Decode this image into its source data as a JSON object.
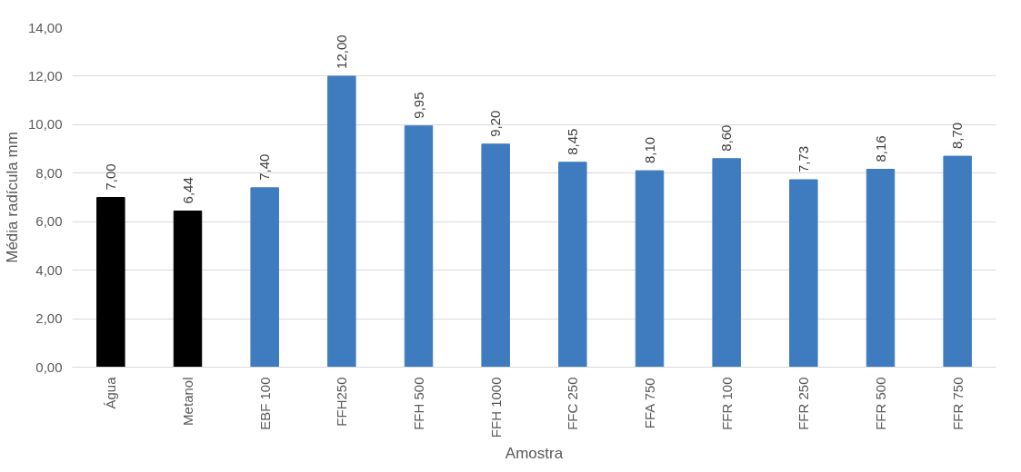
{
  "chart_data": {
    "type": "bar",
    "xlabel": "Amostra",
    "ylabel": "Média radícula mm",
    "categories": [
      "Água",
      "Metanol",
      "EBF 100",
      "FFH250",
      "FFH 500",
      "FFH 1000",
      "FFC 250",
      "FFA 750",
      "FFR 100",
      "FFR 250",
      "FFR 500",
      "FFR 750"
    ],
    "values": [
      7.0,
      6.44,
      7.4,
      12.0,
      9.95,
      9.2,
      8.45,
      8.1,
      8.6,
      7.73,
      8.16,
      8.7
    ],
    "colors": [
      "#000000",
      "#000000",
      "#3f7cbf",
      "#3f7cbf",
      "#3f7cbf",
      "#3f7cbf",
      "#3f7cbf",
      "#3f7cbf",
      "#3f7cbf",
      "#3f7cbf",
      "#3f7cbf",
      "#3f7cbf"
    ],
    "value_labels": [
      "7,00",
      "6,44",
      "7,40",
      "12,00",
      "9,95",
      "9,20",
      "8,45",
      "8,10",
      "8,60",
      "7,73",
      "8,16",
      "8,70"
    ],
    "ylim": [
      0,
      14
    ],
    "yticks": [
      {
        "value": 0,
        "label": "0,00"
      },
      {
        "value": 2,
        "label": "2,00"
      },
      {
        "value": 4,
        "label": "4,00"
      },
      {
        "value": 6,
        "label": "6,00"
      },
      {
        "value": 8,
        "label": "8,00"
      },
      {
        "value": 10,
        "label": "10,00"
      },
      {
        "value": 12,
        "label": "12,00"
      },
      {
        "value": 14,
        "label": "14,00"
      }
    ],
    "grid": "y"
  }
}
